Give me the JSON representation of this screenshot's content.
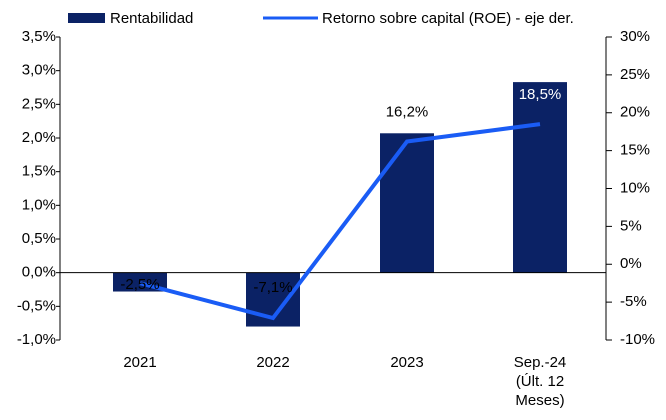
{
  "chart_data": {
    "type": "bar_line",
    "categories": [
      "2021",
      "2022",
      "2023",
      "Sep.-24 (Últ. 12 Meses)"
    ],
    "series": [
      {
        "name": "Rentabilidad",
        "color": "#0b2265",
        "type": "bar",
        "values": [
          -0.28,
          -0.8,
          2.07,
          2.83
        ]
      },
      {
        "name": "Retorno sobre capital (ROE) - eje der.",
        "color": "#1a5cf5",
        "type": "line",
        "axis": "y2",
        "values": [
          -2.5,
          -7.1,
          16.2,
          18.5
        ],
        "value_labels": [
          "-2,5%",
          "-7,1%",
          "16,2%",
          "18,5%"
        ]
      }
    ],
    "ylim": [
      -1.0,
      3.5
    ],
    "yticks": [
      {
        "value": -1.0,
        "label": "-1,0%"
      },
      {
        "value": -0.5,
        "label": "-0,5%"
      },
      {
        "value": 0,
        "label": "0,0%"
      },
      {
        "value": 0.5,
        "label": "0,5%"
      },
      {
        "value": 1.0,
        "label": "1,0%"
      },
      {
        "value": 1.5,
        "label": "1,5%"
      },
      {
        "value": 2.0,
        "label": "2,0%"
      },
      {
        "value": 2.5,
        "label": "2,5%"
      },
      {
        "value": 3.0,
        "label": "3,0%"
      },
      {
        "value": 3.5,
        "label": "3,5%"
      }
    ],
    "y2lim": [
      -10,
      30
    ],
    "y2ticks": [
      {
        "value": -10,
        "label": "-10%"
      },
      {
        "value": -5,
        "label": "-5%"
      },
      {
        "value": 0,
        "label": "0%"
      },
      {
        "value": 5,
        "label": "5%"
      },
      {
        "value": 10,
        "label": "10%"
      },
      {
        "value": 15,
        "label": "15%"
      },
      {
        "value": 20,
        "label": "20%"
      },
      {
        "value": 25,
        "label": "25%"
      },
      {
        "value": 30,
        "label": "30%"
      }
    ],
    "legend": "top"
  }
}
